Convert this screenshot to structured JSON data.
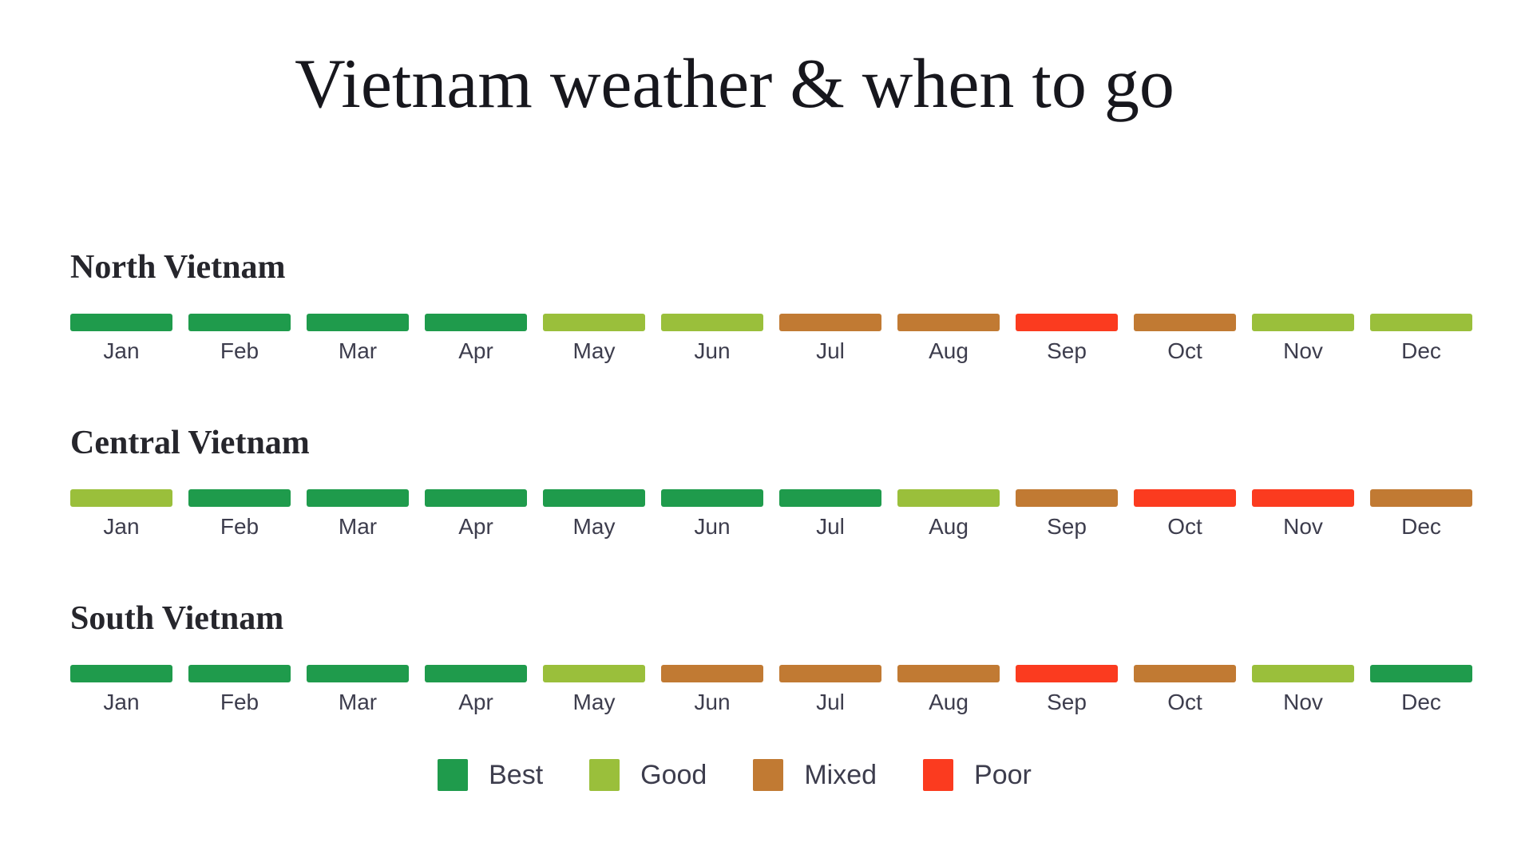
{
  "page": {
    "background": "#ffffff"
  },
  "colors": {
    "best": "#1f9b4c",
    "good": "#9abf3b",
    "mixed": "#c17a33",
    "poor": "#fb3b1f"
  },
  "legend": [
    {
      "label": "Best",
      "key": "best"
    },
    {
      "label": "Good",
      "key": "good"
    },
    {
      "label": "Mixed",
      "key": "mixed"
    },
    {
      "label": "Poor",
      "key": "poor"
    }
  ],
  "chart_data": {
    "type": "heatmap",
    "title": "Vietnam weather & when to go",
    "categories": [
      "Jan",
      "Feb",
      "Mar",
      "Apr",
      "May",
      "Jun",
      "Jul",
      "Aug",
      "Sep",
      "Oct",
      "Nov",
      "Dec"
    ],
    "series": [
      {
        "name": "North Vietnam",
        "values": [
          "best",
          "best",
          "best",
          "best",
          "good",
          "good",
          "mixed",
          "mixed",
          "poor",
          "mixed",
          "good",
          "good"
        ]
      },
      {
        "name": "Central Vietnam",
        "values": [
          "good",
          "best",
          "best",
          "best",
          "best",
          "best",
          "best",
          "good",
          "mixed",
          "poor",
          "poor",
          "mixed"
        ]
      },
      {
        "name": "South Vietnam",
        "values": [
          "best",
          "best",
          "best",
          "best",
          "good",
          "mixed",
          "mixed",
          "mixed",
          "poor",
          "mixed",
          "good",
          "best"
        ]
      }
    ],
    "legend_labels": [
      "Best",
      "Good",
      "Mixed",
      "Poor"
    ],
    "legend_position": "bottom",
    "grid": false
  }
}
